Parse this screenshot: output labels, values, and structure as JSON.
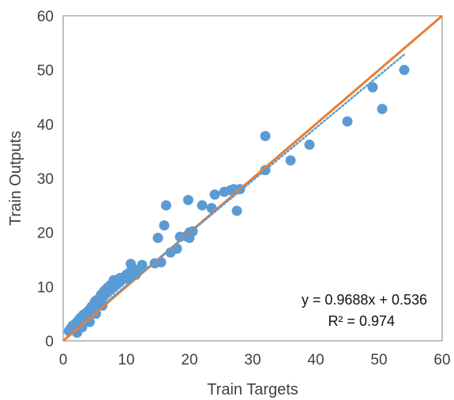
{
  "chart_data": {
    "type": "scatter",
    "title": "",
    "xlabel": "Train Targets",
    "ylabel": "Train Outputs",
    "xlim": [
      0,
      60
    ],
    "ylim": [
      0,
      60
    ],
    "xticks": [
      0,
      10,
      20,
      30,
      40,
      50,
      60
    ],
    "yticks": [
      0,
      10,
      20,
      30,
      40,
      50,
      60
    ],
    "grid": false,
    "legend": "none",
    "colors": {
      "points": "#5B9BD5",
      "identity_line": "#ED7D31",
      "trendline": "#5B9BD5",
      "frame": "#808080",
      "text": "#404040"
    },
    "series": [
      {
        "kind": "points",
        "x": [
          0.9,
          1.2,
          1.5,
          1.8,
          2.0,
          2.2,
          2.3,
          2.5,
          2.6,
          2.8,
          3.0,
          3.0,
          3.2,
          3.3,
          3.5,
          3.5,
          3.7,
          3.8,
          4.0,
          4.0,
          4.2,
          4.3,
          4.5,
          4.5,
          4.7,
          4.8,
          5.0,
          5.0,
          5.2,
          5.3,
          5.5,
          5.5,
          5.7,
          5.8,
          6.0,
          6.0,
          6.2,
          6.3,
          6.5,
          6.5,
          6.7,
          6.8,
          7.0,
          7.0,
          7.2,
          7.3,
          7.5,
          7.5,
          7.7,
          7.8,
          8.0,
          8.0,
          8.2,
          8.3,
          8.5,
          8.5,
          8.7,
          8.8,
          9.0,
          9.0,
          9.2,
          9.5,
          9.7,
          10.0,
          10.0,
          10.2,
          10.5,
          10.7,
          11.0,
          11.5,
          12.0,
          12.5,
          14.5,
          15.0,
          15.5,
          17.0,
          18.0,
          18.5,
          19.5,
          20.0,
          20.5,
          2.2,
          3.0,
          4.2,
          5.2,
          6.2,
          7.2,
          8.0,
          10.5,
          11.5,
          16.0,
          16.3,
          19.8,
          20.0,
          22.0,
          23.5,
          24.0,
          25.5,
          26.5,
          27.0,
          27.5,
          28.0,
          32.0,
          32.0,
          36.0,
          39.0,
          45.0,
          49.0,
          50.5,
          54.0
        ],
        "y": [
          1.8,
          2.3,
          2.8,
          3.0,
          3.2,
          3.4,
          3.6,
          3.9,
          4.0,
          4.3,
          4.5,
          4.2,
          4.8,
          4.7,
          5.0,
          4.6,
          5.2,
          5.3,
          5.5,
          5.1,
          5.8,
          5.7,
          6.0,
          6.3,
          6.1,
          6.6,
          6.5,
          7.2,
          6.8,
          7.5,
          7.0,
          7.6,
          7.4,
          7.8,
          7.7,
          8.5,
          8.0,
          8.6,
          8.4,
          9.2,
          8.7,
          9.5,
          8.9,
          9.8,
          9.2,
          10.0,
          9.4,
          10.3,
          9.7,
          10.5,
          9.9,
          11.0,
          10.2,
          10.8,
          10.4,
          11.2,
          10.7,
          11.3,
          10.9,
          11.6,
          11.2,
          11.4,
          11.8,
          11.5,
          12.2,
          12.0,
          12.6,
          14.2,
          13.0,
          12.2,
          13.2,
          14.0,
          14.3,
          19.0,
          14.5,
          16.3,
          17.0,
          19.2,
          19.3,
          20.0,
          20.2,
          1.5,
          2.5,
          3.5,
          5.0,
          6.5,
          9.8,
          11.2,
          11.8,
          12.8,
          21.3,
          25.0,
          26.0,
          19.0,
          25.0,
          24.5,
          27.0,
          27.5,
          27.8,
          28.0,
          24.0,
          28.0,
          31.5,
          37.8,
          33.3,
          36.2,
          40.5,
          46.8,
          42.8,
          50.0
        ]
      }
    ],
    "lines": [
      {
        "kind": "identity",
        "x": [
          0,
          60
        ],
        "y": [
          0,
          60
        ]
      },
      {
        "kind": "linear-trendline",
        "slope": 0.9688,
        "intercept": 0.536,
        "x": [
          0.9,
          54.0
        ]
      }
    ],
    "annotations": {
      "equation": "y = 0.9688x + 0.536",
      "r_squared": "R² = 0.974"
    }
  }
}
